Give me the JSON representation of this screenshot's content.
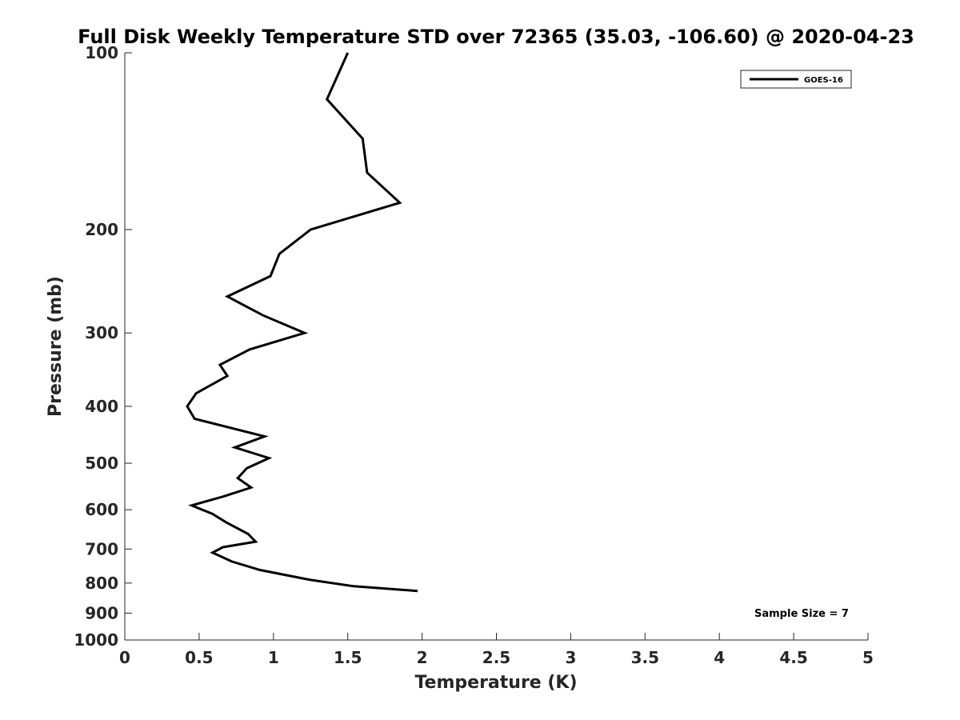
{
  "chart_data": {
    "type": "line",
    "title": "Full Disk Weekly Temperature STD over 72365 (35.03, -106.60) @ 2020-04-23",
    "xlabel": "Temperature (K)",
    "ylabel": "Pressure (mb)",
    "xlim": [
      0,
      5
    ],
    "ylim": [
      100,
      1000
    ],
    "y_scale": "log",
    "y_reversed": true,
    "grid": false,
    "x_ticks": [
      0,
      0.5,
      1,
      1.5,
      2,
      2.5,
      3,
      3.5,
      4,
      4.5,
      5
    ],
    "x_tick_labels": [
      "0",
      "0.5",
      "1",
      "1.5",
      "2",
      "2.5",
      "3",
      "3.5",
      "4",
      "4.5",
      "5"
    ],
    "y_ticks": [
      100,
      200,
      300,
      400,
      500,
      600,
      700,
      800,
      900,
      1000
    ],
    "y_tick_labels": [
      "100",
      "200",
      "300",
      "400",
      "500",
      "600",
      "700",
      "800",
      "900",
      "1000"
    ],
    "legend": {
      "position": "top-right",
      "entries": [
        "GOES-16"
      ]
    },
    "annotation": "Sample Size = 7",
    "series": [
      {
        "name": "GOES-16",
        "color": "#000000",
        "points": [
          {
            "x": 1.5,
            "p": 100
          },
          {
            "x": 1.36,
            "p": 120
          },
          {
            "x": 1.6,
            "p": 140
          },
          {
            "x": 1.63,
            "p": 160
          },
          {
            "x": 1.85,
            "p": 180
          },
          {
            "x": 1.25,
            "p": 200
          },
          {
            "x": 1.04,
            "p": 220
          },
          {
            "x": 0.98,
            "p": 240
          },
          {
            "x": 0.69,
            "p": 260
          },
          {
            "x": 0.93,
            "p": 280
          },
          {
            "x": 1.21,
            "p": 300
          },
          {
            "x": 0.84,
            "p": 320
          },
          {
            "x": 0.64,
            "p": 340
          },
          {
            "x": 0.69,
            "p": 355
          },
          {
            "x": 0.48,
            "p": 380
          },
          {
            "x": 0.42,
            "p": 400
          },
          {
            "x": 0.47,
            "p": 420
          },
          {
            "x": 0.94,
            "p": 450
          },
          {
            "x": 0.74,
            "p": 470
          },
          {
            "x": 0.97,
            "p": 490
          },
          {
            "x": 0.82,
            "p": 510
          },
          {
            "x": 0.76,
            "p": 530
          },
          {
            "x": 0.85,
            "p": 550
          },
          {
            "x": 0.66,
            "p": 570
          },
          {
            "x": 0.45,
            "p": 590
          },
          {
            "x": 0.59,
            "p": 610
          },
          {
            "x": 0.68,
            "p": 630
          },
          {
            "x": 0.83,
            "p": 660
          },
          {
            "x": 0.88,
            "p": 680
          },
          {
            "x": 0.66,
            "p": 695
          },
          {
            "x": 0.59,
            "p": 710
          },
          {
            "x": 0.72,
            "p": 735
          },
          {
            "x": 0.91,
            "p": 760
          },
          {
            "x": 1.25,
            "p": 790
          },
          {
            "x": 1.54,
            "p": 810
          },
          {
            "x": 1.97,
            "p": 825
          }
        ]
      }
    ]
  }
}
